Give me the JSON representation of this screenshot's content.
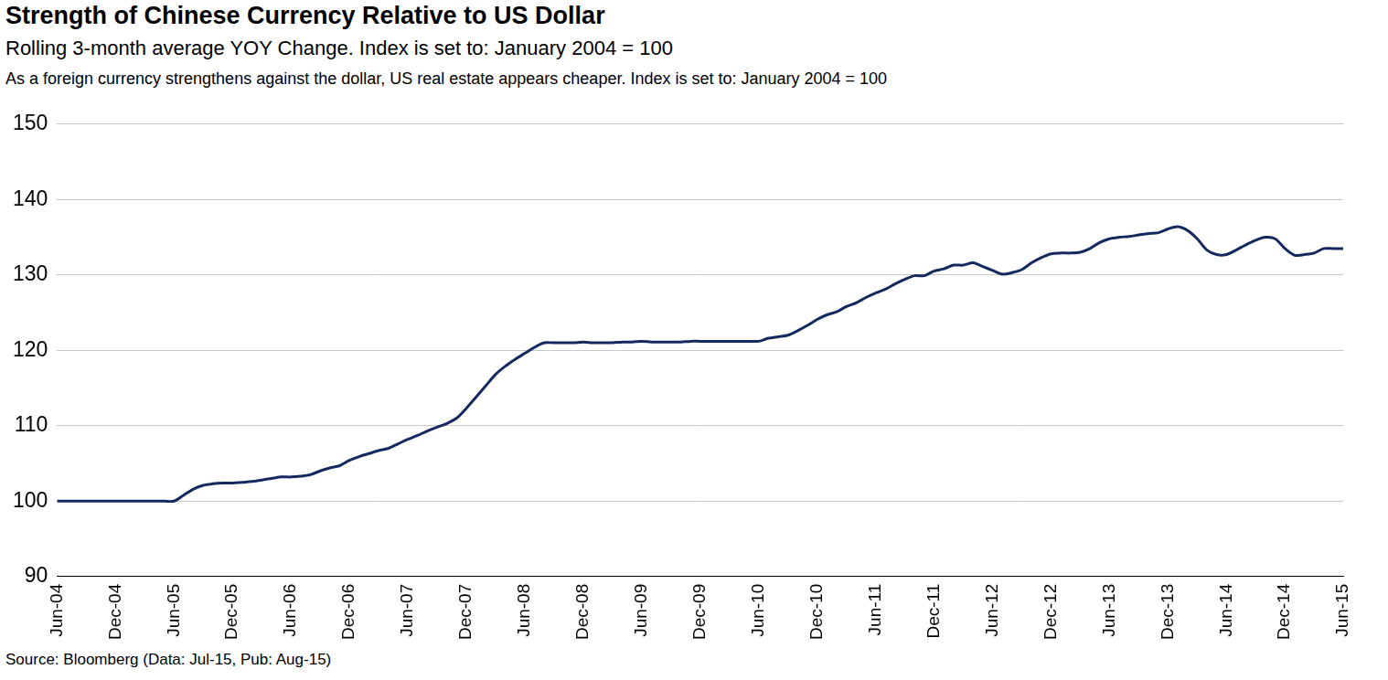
{
  "chart_data": {
    "type": "line",
    "title": "Strength of Chinese Currency Relative to US Dollar",
    "subtitle": [
      "Rolling 3-month average YOY Change. Index is set to: January 2004 = 100",
      "As a foreign currency strengthens against the dollar, US real estate appears cheaper. Index is set to: January 2004 = 100"
    ],
    "source": "Source: Bloomberg (Data: Jul-15, Pub: Aug-15)",
    "categories": [
      "Jun-04",
      null,
      null,
      null,
      null,
      null,
      "Dec-04",
      null,
      null,
      null,
      null,
      null,
      "Jun-05",
      null,
      null,
      null,
      null,
      null,
      "Dec-05",
      null,
      null,
      null,
      null,
      null,
      "Jun-06",
      null,
      null,
      null,
      null,
      null,
      "Dec-06",
      null,
      null,
      null,
      null,
      null,
      "Jun-07",
      null,
      null,
      null,
      null,
      null,
      "Dec-07",
      null,
      null,
      null,
      null,
      null,
      "Jun-08",
      null,
      null,
      null,
      null,
      null,
      "Dec-08",
      null,
      null,
      null,
      null,
      null,
      "Jun-09",
      null,
      null,
      null,
      null,
      null,
      "Dec-09",
      null,
      null,
      null,
      null,
      null,
      "Jun-10",
      null,
      null,
      null,
      null,
      null,
      "Dec-10",
      null,
      null,
      null,
      null,
      null,
      "Jun-11",
      null,
      null,
      null,
      null,
      null,
      "Dec-11",
      null,
      null,
      null,
      null,
      null,
      "Jun-12",
      null,
      null,
      null,
      null,
      null,
      "Dec-12",
      null,
      null,
      null,
      null,
      null,
      "Jun-13",
      null,
      null,
      null,
      null,
      null,
      "Dec-13",
      null,
      null,
      null,
      null,
      null,
      "Jun-14",
      null,
      null,
      null,
      null,
      null,
      "Dec-14",
      null,
      null,
      null,
      null,
      null,
      "Jun-15"
    ],
    "values": [
      100,
      100,
      100,
      100,
      100,
      100,
      100,
      100,
      100,
      100,
      100,
      100,
      100,
      100.8,
      101.6,
      102.1,
      102.3,
      102.4,
      102.4,
      102.5,
      102.6,
      102.8,
      103.0,
      103.2,
      103.2,
      103.3,
      103.5,
      104.0,
      104.4,
      104.7,
      105.4,
      105.9,
      106.3,
      106.7,
      107.0,
      107.6,
      108.2,
      108.7,
      109.3,
      109.8,
      110.3,
      111.0,
      112.3,
      113.8,
      115.3,
      116.8,
      117.9,
      118.8,
      119.6,
      120.4,
      121.0,
      121.0,
      121.0,
      121.0,
      121.1,
      121.0,
      121.0,
      121.0,
      121.1,
      121.1,
      121.2,
      121.1,
      121.1,
      121.1,
      121.1,
      121.2,
      121.2,
      121.2,
      121.2,
      121.2,
      121.2,
      121.2,
      121.2,
      121.6,
      121.8,
      122.0,
      122.6,
      123.3,
      124.1,
      124.7,
      125.1,
      125.8,
      126.3,
      127.0,
      127.6,
      128.1,
      128.8,
      129.4,
      129.9,
      129.9,
      130.5,
      130.8,
      131.3,
      131.3,
      131.6,
      131.1,
      130.6,
      130.1,
      130.3,
      130.7,
      131.6,
      132.3,
      132.8,
      132.9,
      132.9,
      133.0,
      133.5,
      134.3,
      134.8,
      135.0,
      135.1,
      135.3,
      135.5,
      135.6,
      136.1,
      136.4,
      135.9,
      134.8,
      133.3,
      132.7,
      132.7,
      133.3,
      134.0,
      134.6,
      135.0,
      134.8,
      133.5,
      132.6,
      132.7,
      132.9,
      133.5,
      133.5,
      133.5
    ],
    "color": "#142a5e",
    "ylim": [
      90,
      150
    ],
    "yticks": [
      90,
      100,
      110,
      120,
      130,
      140,
      150
    ],
    "grid": true
  }
}
